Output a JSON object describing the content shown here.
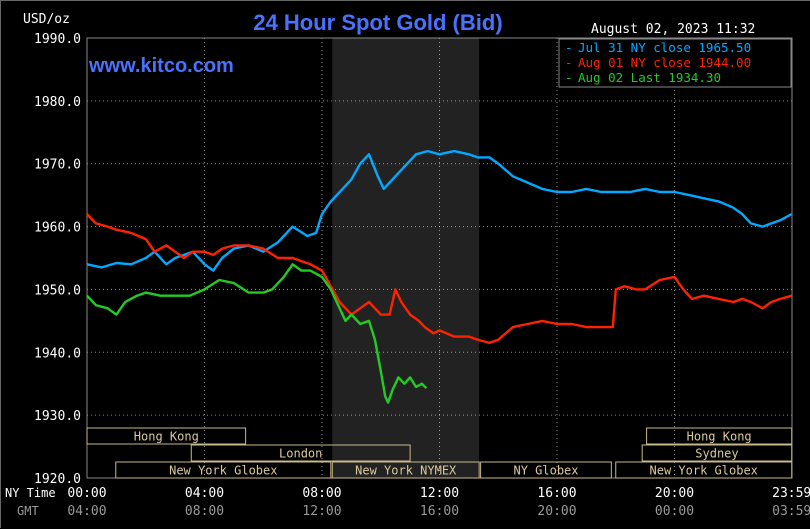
{
  "chart_data": {
    "type": "line",
    "title": "24 Hour Spot Gold (Bid)",
    "ylabel": "USD/oz",
    "timestamp": "August 02, 2023 11:32",
    "watermark": "www.kitco.com",
    "ylim": [
      1920,
      1990
    ],
    "y_ticks": [
      "1990.0",
      "1980.0",
      "1970.0",
      "1960.0",
      "1950.0",
      "1940.0",
      "1930.0",
      "1920.0"
    ],
    "x_hours_range": [
      0,
      24
    ],
    "x_axis_ny_label": "NY Time",
    "x_axis_gmt_label": "GMT",
    "x_ticks_ny": [
      "00:00",
      "04:00",
      "08:00",
      "12:00",
      "16:00",
      "20:00",
      "23:59"
    ],
    "x_ticks_gmt": [
      "04:00",
      "08:00",
      "12:00",
      "16:00",
      "20:00",
      "00:00",
      "03:59"
    ],
    "legend": [
      {
        "prefix": "-",
        "text": "Jul 31 NY close 1965.50",
        "color": "#00aaff"
      },
      {
        "prefix": "-",
        "text": "Aug 01 NY close 1944.00",
        "color": "#ff2200"
      },
      {
        "prefix": "-",
        "text": "Aug 02 Last 1934.30",
        "color": "#22cc22"
      }
    ],
    "shaded_region_hours": [
      8.35,
      13.35
    ],
    "markets": [
      {
        "name": "Hong Kong",
        "row": 0,
        "start": 0.0,
        "end": 5.4
      },
      {
        "name": "London",
        "row": 1,
        "start": 3.55,
        "end": 11.0
      },
      {
        "name": "New York Globex",
        "row": 2,
        "start": 0.98,
        "end": 8.3
      },
      {
        "name": "New York NYMEX",
        "row": 2,
        "start": 8.35,
        "end": 13.35
      },
      {
        "name": "NY Globex",
        "row": 2,
        "start": 13.4,
        "end": 17.85
      },
      {
        "name": "Hong Kong",
        "row": 0,
        "start": 19.05,
        "end": 23.99
      },
      {
        "name": "Sydney",
        "row": 1,
        "start": 18.9,
        "end": 23.99
      },
      {
        "name": "New York Globex",
        "row": 2,
        "start": 18.0,
        "end": 23.99
      }
    ],
    "series": [
      {
        "color": "#00aaff",
        "x": [
          0,
          0.5,
          1.0,
          1.5,
          2.0,
          2.3,
          2.7,
          3.0,
          3.3,
          3.6,
          4.0,
          4.3,
          4.6,
          5.0,
          5.5,
          6.0,
          6.5,
          7.0,
          7.5,
          7.8,
          8.0,
          8.3,
          8.7,
          9.0,
          9.3,
          9.6,
          9.9,
          10.1,
          10.5,
          10.9,
          11.2,
          11.6,
          12.0,
          12.5,
          13.0,
          13.3,
          13.7,
          14.0,
          14.5,
          15.0,
          15.5,
          16.0,
          16.5,
          17.0,
          17.5,
          18.0,
          18.5,
          19.0,
          19.5,
          20.0,
          20.5,
          21.0,
          21.5,
          22.0,
          22.3,
          22.6,
          23.0,
          23.3,
          23.6,
          23.99
        ],
        "y": [
          1954,
          1953.5,
          1954.2,
          1954,
          1955,
          1956,
          1954,
          1955,
          1955.5,
          1956,
          1954,
          1953,
          1955,
          1956.5,
          1957,
          1956,
          1957.5,
          1960,
          1958.5,
          1959,
          1962,
          1964,
          1966,
          1967.5,
          1970,
          1971.5,
          1968,
          1966,
          1968,
          1970,
          1971.5,
          1972,
          1971.5,
          1972,
          1971.5,
          1971,
          1971,
          1970,
          1968,
          1967,
          1966,
          1965.5,
          1965.5,
          1966,
          1965.5,
          1965.5,
          1965.5,
          1966,
          1965.5,
          1965.5,
          1965,
          1964.5,
          1964,
          1963,
          1962,
          1960.5,
          1960,
          1960.5,
          1961,
          1962
        ]
      },
      {
        "color": "#ff2200",
        "x": [
          0,
          0.3,
          0.7,
          1.0,
          1.5,
          2.0,
          2.3,
          2.7,
          3.0,
          3.3,
          3.6,
          4.0,
          4.3,
          4.6,
          5.0,
          5.5,
          6.0,
          6.5,
          7.0,
          7.3,
          7.6,
          8.0,
          8.3,
          8.6,
          9.0,
          9.3,
          9.6,
          10.0,
          10.3,
          10.5,
          10.7,
          11.0,
          11.3,
          11.5,
          11.8,
          12.0,
          12.5,
          13.0,
          13.3,
          13.7,
          14.0,
          14.5,
          15.0,
          15.5,
          16.0,
          16.5,
          17.0,
          17.5,
          17.9,
          18.0,
          18.3,
          18.7,
          19.0,
          19.5,
          20.0,
          20.3,
          20.6,
          21.0,
          21.5,
          22.0,
          22.3,
          22.6,
          23.0,
          23.3,
          23.6,
          23.99
        ],
        "y": [
          1962,
          1960.5,
          1960,
          1959.5,
          1959,
          1958,
          1956,
          1957,
          1956,
          1955,
          1956,
          1956,
          1955.5,
          1956.5,
          1957,
          1957,
          1956.5,
          1955,
          1955,
          1954.5,
          1954,
          1953,
          1950.5,
          1948,
          1946,
          1947,
          1948,
          1946,
          1946,
          1950,
          1948,
          1946,
          1945,
          1944,
          1943,
          1943.5,
          1942.5,
          1942.5,
          1942,
          1941.5,
          1942,
          1944,
          1944.5,
          1945,
          1944.5,
          1944.5,
          1944,
          1944,
          1944,
          1950,
          1950.5,
          1950,
          1950,
          1951.5,
          1952,
          1950,
          1948.5,
          1949,
          1948.5,
          1948,
          1948.5,
          1948,
          1947,
          1948,
          1948.5,
          1949
        ]
      },
      {
        "color": "#22cc22",
        "x": [
          0,
          0.3,
          0.7,
          1.0,
          1.3,
          1.7,
          2.0,
          2.5,
          3.0,
          3.5,
          4.0,
          4.5,
          5.0,
          5.5,
          6.0,
          6.3,
          6.7,
          7.0,
          7.3,
          7.6,
          8.0,
          8.3,
          8.5,
          8.8,
          9.0,
          9.3,
          9.6,
          9.8,
          10.0,
          10.15,
          10.25,
          10.4,
          10.6,
          10.8,
          11.0,
          11.2,
          11.4,
          11.55
        ],
        "y": [
          1949,
          1947.5,
          1947,
          1946,
          1948,
          1949,
          1949.5,
          1949,
          1949,
          1949,
          1950,
          1951.5,
          1951,
          1949.5,
          1949.5,
          1950,
          1952,
          1954,
          1953,
          1953,
          1952,
          1950,
          1948,
          1945,
          1946,
          1944.5,
          1945,
          1942,
          1937,
          1933,
          1932,
          1934,
          1936,
          1935,
          1936,
          1934.5,
          1935,
          1934.3
        ]
      }
    ]
  }
}
